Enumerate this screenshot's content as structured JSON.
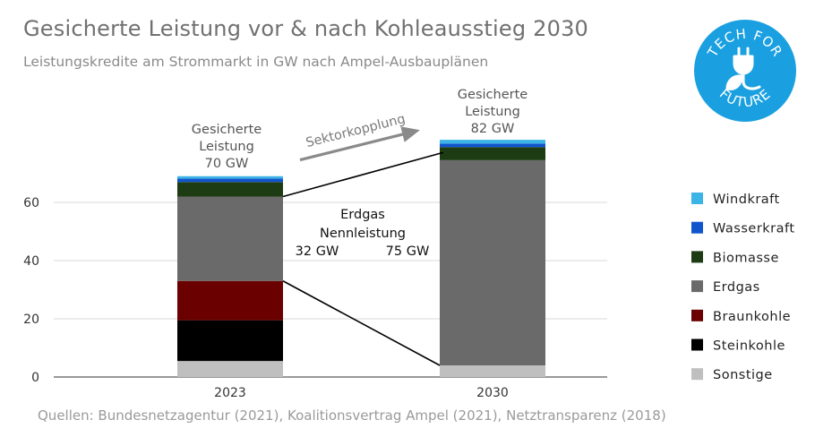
{
  "chart_data": {
    "type": "bar",
    "stacked": true,
    "title": "Gesicherte Leistung vor & nach Kohleausstieg 2030",
    "subtitle": "Leistungskredite am Strommarkt in GW nach Ampel-Ausbauplänen",
    "categories": [
      "2023",
      "2030"
    ],
    "series": [
      {
        "name": "Sonstige",
        "color": "#bfbfbf",
        "values": [
          5.5,
          4.0
        ]
      },
      {
        "name": "Steinkohle",
        "color": "#000000",
        "values": [
          14.0,
          0
        ]
      },
      {
        "name": "Braunkohle",
        "color": "#6b0000",
        "values": [
          13.5,
          0
        ]
      },
      {
        "name": "Erdgas",
        "color": "#6a6a6a",
        "values": [
          29.0,
          70.5
        ]
      },
      {
        "name": "Biomasse",
        "color": "#1e3c14",
        "values": [
          5.0,
          4.5
        ]
      },
      {
        "name": "Wasserkraft",
        "color": "#1155cc",
        "values": [
          1.2,
          1.2
        ]
      },
      {
        "name": "Windkraft",
        "color": "#3cb4e6",
        "values": [
          0.8,
          1.3
        ]
      }
    ],
    "ylim": [
      0,
      82
    ],
    "yticks": [
      "0",
      "20",
      "40",
      "60"
    ],
    "ytick_values": [
      0,
      20,
      40,
      60
    ],
    "legend_position": "right",
    "annotations": {
      "total_2023": [
        "Gesicherte",
        "Leistung",
        "70 GW"
      ],
      "total_2030": [
        "Gesicherte",
        "Leistung",
        "82 GW"
      ],
      "arrow_label": "Sektorkopplung",
      "gas_title_1": "Erdgas",
      "gas_title_2": "Nennleistung",
      "gas_2023": "32 GW",
      "gas_2030": "75 GW"
    },
    "source": "Quellen: Bundesnetzagentur (2021), Koalitionsvertrag Ampel (2021), Netztransparenz (2018)"
  },
  "logo": {
    "line1": "TECH FOR",
    "line2": "FUTURE",
    "color": "#1aa0e0"
  }
}
